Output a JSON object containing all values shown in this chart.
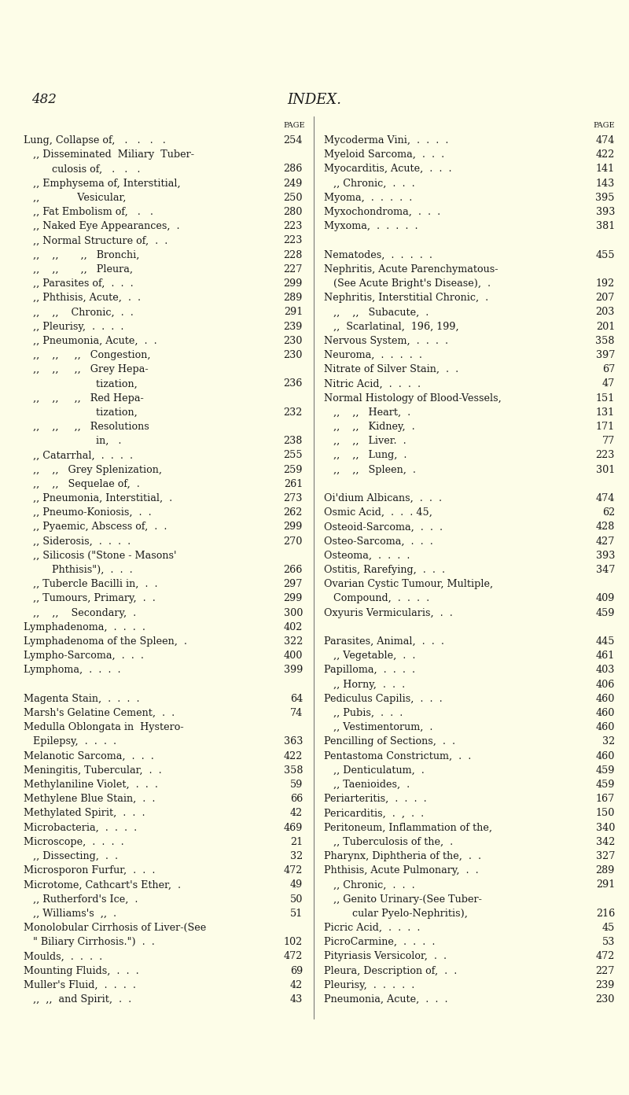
{
  "background_color": "#fdfde8",
  "page_number": "482",
  "title": "INDEX.",
  "text_color": "#1a1a1a",
  "font_size": 9.2,
  "page_num_font_size": 12,
  "title_font_size": 13,
  "left_lines": [
    {
      "text": "Lung, Collapse of,   .   .   .   .",
      "page": "254",
      "indent": 0
    },
    {
      "text": "   ,, Disseminated  Miliary  Tuber-",
      "page": "",
      "indent": 0
    },
    {
      "text": "         culosis of,   .   .   .",
      "page": "286",
      "indent": 0
    },
    {
      "text": "   ,, Emphysema of, Interstitial,",
      "page": "249",
      "indent": 0
    },
    {
      "text": "   ,,            Vesicular,",
      "page": "250",
      "indent": 0
    },
    {
      "text": "   ,, Fat Embolism of,   .   .",
      "page": "280",
      "indent": 0
    },
    {
      "text": "   ,, Naked Eye Appearances,  .",
      "page": "223",
      "indent": 0
    },
    {
      "text": "   ,, Normal Structure of,  .  .",
      "page": "223",
      "indent": 0
    },
    {
      "text": "   ,,    ,,       ,,   Bronchi,",
      "page": "228",
      "indent": 0
    },
    {
      "text": "   ,,    ,,       ,,   Pleura,",
      "page": "227",
      "indent": 0
    },
    {
      "text": "   ,, Parasites of,  .  .  .",
      "page": "299",
      "indent": 0
    },
    {
      "text": "   ,, Phthisis, Acute,  .  .",
      "page": "289",
      "indent": 0
    },
    {
      "text": "   ,,    ,,    Chronic,  .  .",
      "page": "291",
      "indent": 0
    },
    {
      "text": "   ,, Pleurisy,  .  .  .  .",
      "page": "239",
      "indent": 0
    },
    {
      "text": "   ,, Pneumonia, Acute,  .  .",
      "page": "230",
      "indent": 0
    },
    {
      "text": "   ,,    ,,     ,,   Congestion,",
      "page": "230",
      "indent": 0
    },
    {
      "text": "   ,,    ,,     ,,   Grey Hepa-",
      "page": "",
      "indent": 0
    },
    {
      "text": "                       tization,",
      "page": "236",
      "indent": 0
    },
    {
      "text": "   ,,    ,,     ,,   Red Hepa-",
      "page": "",
      "indent": 0
    },
    {
      "text": "                       tization,",
      "page": "232",
      "indent": 0
    },
    {
      "text": "   ,,    ,,     ,,   Resolutions",
      "page": "",
      "indent": 0
    },
    {
      "text": "                       in,   .",
      "page": "238",
      "indent": 0
    },
    {
      "text": "   ,, Catarrhal,  .  .  .  .",
      "page": "255",
      "indent": 0
    },
    {
      "text": "   ,,    ,,   Grey Splenization,",
      "page": "259",
      "indent": 0
    },
    {
      "text": "   ,,    ,,   Sequelae of,  .",
      "page": "261",
      "indent": 0
    },
    {
      "text": "   ,, Pneumonia, Interstitial,  .",
      "page": "273",
      "indent": 0
    },
    {
      "text": "   ,, Pneumo-Koniosis,  .  .",
      "page": "262",
      "indent": 0
    },
    {
      "text": "   ,, Pyaemic, Abscess of,  .  .",
      "page": "299",
      "indent": 0
    },
    {
      "text": "   ,, Siderosis,  .  .  .  .",
      "page": "270",
      "indent": 0
    },
    {
      "text": "   ,, Silicosis (\"Stone - Masons'",
      "page": "",
      "indent": 0
    },
    {
      "text": "         Phthisis\"),  .  .  .",
      "page": "266",
      "indent": 0
    },
    {
      "text": "   ,, Tubercle Bacilli in,  .  .",
      "page": "297",
      "indent": 0
    },
    {
      "text": "   ,, Tumours, Primary,  .  .",
      "page": "299",
      "indent": 0
    },
    {
      "text": "   ,,    ,,    Secondary,  .",
      "page": "300",
      "indent": 0
    },
    {
      "text": "Lymphadenoma,  .  .  .  .",
      "page": "402",
      "indent": 0
    },
    {
      "text": "Lymphadenoma of the Spleen,  .",
      "page": "322",
      "indent": 0
    },
    {
      "text": "Lympho-Sarcoma,  .  .  .",
      "page": "400",
      "indent": 0
    },
    {
      "text": "Lymphoma,  .  .  .  .",
      "page": "399",
      "indent": 0
    },
    {
      "text": "",
      "page": "",
      "indent": 0
    },
    {
      "text": "Magenta Stain,  .  .  .  .",
      "page": "64",
      "indent": 0
    },
    {
      "text": "Marsh's Gelatine Cement,  .  .",
      "page": "74",
      "indent": 0
    },
    {
      "text": "Medulla Oblongata in  Hystero-",
      "page": "",
      "indent": 0
    },
    {
      "text": "   Epilepsy,  .  .  .  .",
      "page": "363",
      "indent": 0
    },
    {
      "text": "Melanotic Sarcoma,  .  .  .",
      "page": "422",
      "indent": 0
    },
    {
      "text": "Meningitis, Tubercular,  .  .",
      "page": "358",
      "indent": 0
    },
    {
      "text": "Methylaniline Violet,  .  .  .",
      "page": "59",
      "indent": 0
    },
    {
      "text": "Methylene Blue Stain,  .  .",
      "page": "66",
      "indent": 0
    },
    {
      "text": "Methylated Spirit,  .  .  .",
      "page": "42",
      "indent": 0
    },
    {
      "text": "Microbacteria,  .  .  .  .",
      "page": "469",
      "indent": 0
    },
    {
      "text": "Microscope,  .  .  .  .",
      "page": "21",
      "indent": 0
    },
    {
      "text": "   ,, Dissecting,  .  .",
      "page": "32",
      "indent": 0
    },
    {
      "text": "Microsporon Furfur,  .  .  .",
      "page": "472",
      "indent": 0
    },
    {
      "text": "Microtome, Cathcart's Ether,  .",
      "page": "49",
      "indent": 0
    },
    {
      "text": "   ,, Rutherford's Ice,  .",
      "page": "50",
      "indent": 0
    },
    {
      "text": "   ,, Williams's  ,,  .",
      "page": "51",
      "indent": 0
    },
    {
      "text": "Monolobular Cirrhosis of Liver-(See",
      "page": "",
      "indent": 0
    },
    {
      "text": "   \" Biliary Cirrhosis.\")  .  .",
      "page": "102",
      "indent": 0
    },
    {
      "text": "Moulds,  .  .  .  .",
      "page": "472",
      "indent": 0
    },
    {
      "text": "Mounting Fluids,  .  .  .",
      "page": "69",
      "indent": 0
    },
    {
      "text": "Muller's Fluid,  .  .  .  .",
      "page": "42",
      "indent": 0
    },
    {
      "text": "   ,,  ,,  and Spirit,  .  .",
      "page": "43",
      "indent": 0
    }
  ],
  "right_lines": [
    {
      "text": "Mycoderma Vini,  .  .  .  .",
      "page": "474",
      "indent": 0
    },
    {
      "text": "Myeloid Sarcoma,  .  .  .",
      "page": "422",
      "indent": 0
    },
    {
      "text": "Myocarditis, Acute,  .  .  .",
      "page": "141",
      "indent": 0
    },
    {
      "text": "   ,, Chronic,  .  .  .",
      "page": "143",
      "indent": 0
    },
    {
      "text": "Myoma,  .  .  .  .  .",
      "page": "395",
      "indent": 0
    },
    {
      "text": "Myxochondroma,  .  .  .",
      "page": "393",
      "indent": 0
    },
    {
      "text": "Myxoma,  .  .  .  .  .",
      "page": "381",
      "indent": 0
    },
    {
      "text": "",
      "page": "",
      "indent": 0
    },
    {
      "text": "Nematodes,  .  .  .  .  .",
      "page": "455",
      "indent": 0
    },
    {
      "text": "Nephritis, Acute Parenchymatous-",
      "page": "",
      "indent": 0
    },
    {
      "text": "   (See Acute Bright's Disease),  .",
      "page": "192",
      "indent": 0
    },
    {
      "text": "Nephritis, Interstitial Chronic,  .",
      "page": "207",
      "indent": 0
    },
    {
      "text": "   ,,    ,,   Subacute,  .",
      "page": "203",
      "indent": 0
    },
    {
      "text": "   ,,  Scarlatinal,  196, 199,",
      "page": "201",
      "indent": 0
    },
    {
      "text": "Nervous System,  .  .  .  .",
      "page": "358",
      "indent": 0
    },
    {
      "text": "Neuroma,  .  .  .  .  .",
      "page": "397",
      "indent": 0
    },
    {
      "text": "Nitrate of Silver Stain,  .  .",
      "page": "67",
      "indent": 0
    },
    {
      "text": "Nitric Acid,  .  .  .  .",
      "page": "47",
      "indent": 0
    },
    {
      "text": "Normal Histology of Blood-Vessels,",
      "page": "151",
      "indent": 0
    },
    {
      "text": "   ,,    ,,   Heart,  .",
      "page": "131",
      "indent": 0
    },
    {
      "text": "   ,,    ,,   Kidney,  .",
      "page": "171",
      "indent": 0
    },
    {
      "text": "   ,,    ,,   Liver.  .",
      "page": "77",
      "indent": 0
    },
    {
      "text": "   ,,    ,,   Lung,  .",
      "page": "223",
      "indent": 0
    },
    {
      "text": "   ,,    ,,   Spleen,  .",
      "page": "301",
      "indent": 0
    },
    {
      "text": "",
      "page": "",
      "indent": 0
    },
    {
      "text": "Oi'dium Albicans,  .  .  .",
      "page": "474",
      "indent": 0
    },
    {
      "text": "Osmic Acid,  .  .  . 45,",
      "page": "62",
      "indent": 0
    },
    {
      "text": "Osteoid-Sarcoma,  .  .  .",
      "page": "428",
      "indent": 0
    },
    {
      "text": "Osteo-Sarcoma,  .  .  .",
      "page": "427",
      "indent": 0
    },
    {
      "text": "Osteoma,  .  .  .  .",
      "page": "393",
      "indent": 0
    },
    {
      "text": "Ostitis, Rarefying,  .  .  .",
      "page": "347",
      "indent": 0
    },
    {
      "text": "Ovarian Cystic Tumour, Multiple,",
      "page": "",
      "indent": 0
    },
    {
      "text": "   Compound,  .  .  .  .",
      "page": "409",
      "indent": 0
    },
    {
      "text": "Oxyuris Vermicularis,  .  .",
      "page": "459",
      "indent": 0
    },
    {
      "text": "",
      "page": "",
      "indent": 0
    },
    {
      "text": "Parasites, Animal,  .  .  .",
      "page": "445",
      "indent": 0
    },
    {
      "text": "   ,, Vegetable,  .  .",
      "page": "461",
      "indent": 0
    },
    {
      "text": "Papilloma,  .  .  .  .",
      "page": "403",
      "indent": 0
    },
    {
      "text": "   ,, Horny,  .  .  .",
      "page": "406",
      "indent": 0
    },
    {
      "text": "Pediculus Capilis,  .  .  .",
      "page": "460",
      "indent": 0
    },
    {
      "text": "   ,, Pubis,  .  .  .",
      "page": "460",
      "indent": 0
    },
    {
      "text": "   ,, Vestimentorum,  .",
      "page": "460",
      "indent": 0
    },
    {
      "text": "Pencilling of Sections,  .  .",
      "page": "32",
      "indent": 0
    },
    {
      "text": "Pentastoma Constrictum,  .  .",
      "page": "460",
      "indent": 0
    },
    {
      "text": "   ,, Denticulatum,  .",
      "page": "459",
      "indent": 0
    },
    {
      "text": "   ,, Taenioides,  .",
      "page": "459",
      "indent": 0
    },
    {
      "text": "Periarteritis,  .  .  .  .",
      "page": "167",
      "indent": 0
    },
    {
      "text": "Pericarditis,  .  ,  .  .",
      "page": "150",
      "indent": 0
    },
    {
      "text": "Peritoneum, Inflammation of the,",
      "page": "340",
      "indent": 0
    },
    {
      "text": "   ,, Tuberculosis of the,  .",
      "page": "342",
      "indent": 0
    },
    {
      "text": "Pharynx, Diphtheria of the,  .  .",
      "page": "327",
      "indent": 0
    },
    {
      "text": "Phthisis, Acute Pulmonary,  .  .",
      "page": "289",
      "indent": 0
    },
    {
      "text": "   ,, Chronic,  .  .  .",
      "page": "291",
      "indent": 0
    },
    {
      "text": "   ,, Genito Urinary-(See Tuber-",
      "page": "",
      "indent": 0
    },
    {
      "text": "         cular Pyelo-Nephritis),",
      "page": "216",
      "indent": 0
    },
    {
      "text": "Picric Acid,  .  .  .  .",
      "page": "45",
      "indent": 0
    },
    {
      "text": "PicroCarmine,  .  .  .  .",
      "page": "53",
      "indent": 0
    },
    {
      "text": "Pityriasis Versicolor,  .  .",
      "page": "472",
      "indent": 0
    },
    {
      "text": "Pleura, Description of,  .  .",
      "page": "227",
      "indent": 0
    },
    {
      "text": "Pleurisy,  .  .  .  .  .",
      "page": "239",
      "indent": 0
    },
    {
      "text": "Pneumonia, Acute,  .  .  .",
      "page": "230",
      "indent": 0
    }
  ]
}
